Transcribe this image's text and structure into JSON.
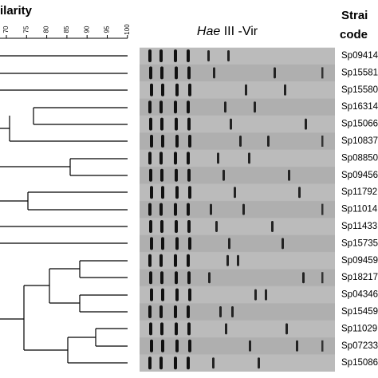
{
  "header": {
    "similarity": "ilarity",
    "title_italic": "Hae",
    "title_rest": " III -Vir",
    "codes_1": "Strai",
    "codes_2": "code"
  },
  "scale": {
    "ticks": [
      "70",
      "75",
      "80",
      "85",
      "90",
      "95",
      "100"
    ]
  },
  "strains": [
    "Sp09414",
    "Sp15581",
    "Sp15580",
    "Sp16314",
    "Sp15066",
    "Sp10837",
    "Sp08850",
    "Sp09456",
    "Sp11792",
    "Sp11014",
    "Sp11433",
    "Sp15735",
    "Sp09459",
    "Sp18217",
    "Sp04346",
    "Sp15459",
    "Sp11029",
    "Sp07233",
    "Sp15086"
  ]
}
